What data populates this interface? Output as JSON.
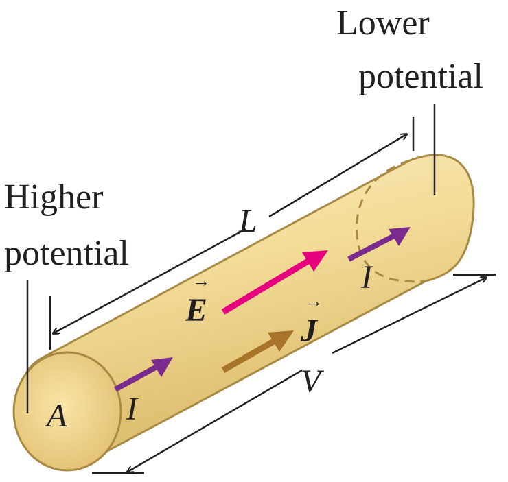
{
  "labels": {
    "lower_line1": "Lower",
    "lower_line2": "potential",
    "higher_line1": "Higher",
    "higher_line2": "potential",
    "length": "L",
    "area": "A",
    "current": "I",
    "field": "E",
    "current_density": "J",
    "voltage": "V",
    "vector_arrow": "→"
  },
  "colors": {
    "cylinder_light": "#fbeec4",
    "cylinder_mid": "#f2d98e",
    "cylinder_dark": "#dcb968",
    "cylinder_outline": "#a98a45",
    "current_arrow": "#7b2a8e",
    "field_arrow": "#e6007e",
    "density_arrow": "#a8742a",
    "ink": "#231f20"
  }
}
